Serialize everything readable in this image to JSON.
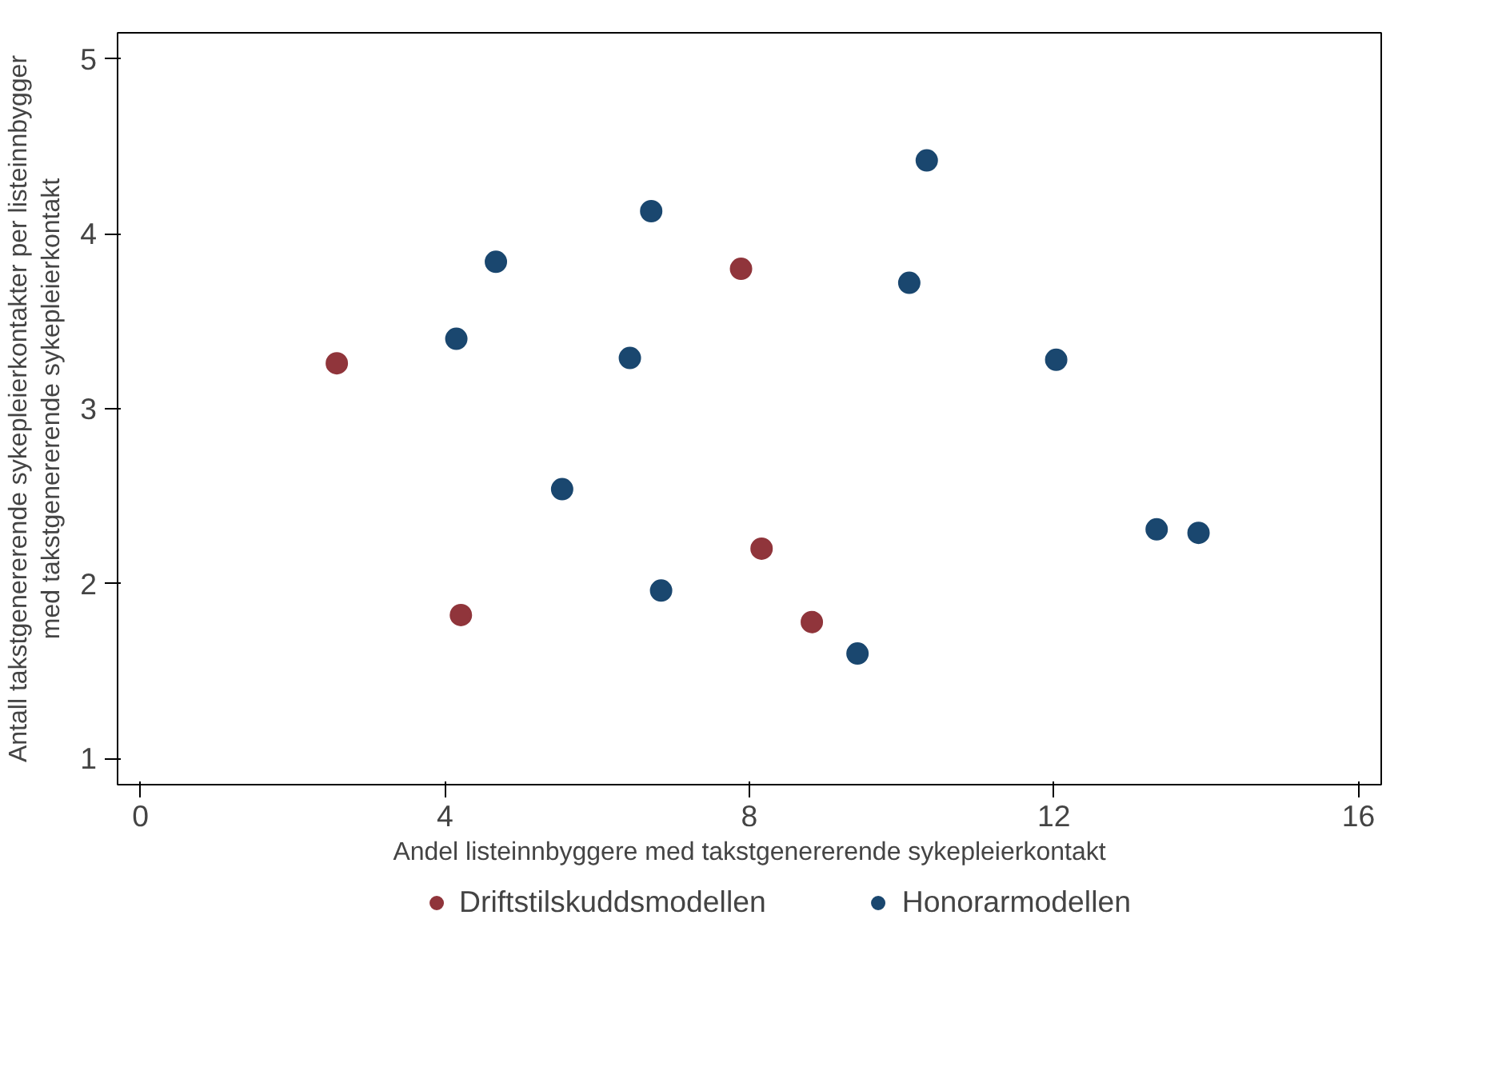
{
  "chart_data": {
    "type": "scatter",
    "xlabel": "Andel listeinnbyggere med takstgenererende sykepleierkontakt",
    "ylabel": "Antall takstgenererende sykepleierkontakter per listeinnbygger\nmed takstgenererende sykepleierkontakt",
    "xlim": [
      -0.3,
      16.3
    ],
    "ylim": [
      0.85,
      5.15
    ],
    "xticks": [
      0,
      4,
      8,
      12,
      16
    ],
    "yticks": [
      1,
      2,
      3,
      4,
      5
    ],
    "grid": false,
    "legend": "bottom",
    "marker": "circle",
    "series": [
      {
        "name": "Driftstilskuddsmodellen",
        "color": "#90353b",
        "x": [
          2.58,
          4.21,
          7.89,
          8.16,
          8.82
        ],
        "values": [
          3.26,
          1.82,
          3.8,
          2.2,
          1.78
        ]
      },
      {
        "name": "Honorarmodellen",
        "color": "#1a476f",
        "x": [
          4.15,
          4.67,
          5.54,
          6.43,
          6.71,
          6.84,
          9.42,
          10.1,
          10.33,
          12.03,
          13.35,
          13.9
        ],
        "values": [
          3.4,
          3.84,
          2.54,
          3.29,
          4.13,
          1.96,
          1.6,
          3.72,
          4.42,
          3.28,
          2.31,
          2.29
        ]
      }
    ]
  }
}
